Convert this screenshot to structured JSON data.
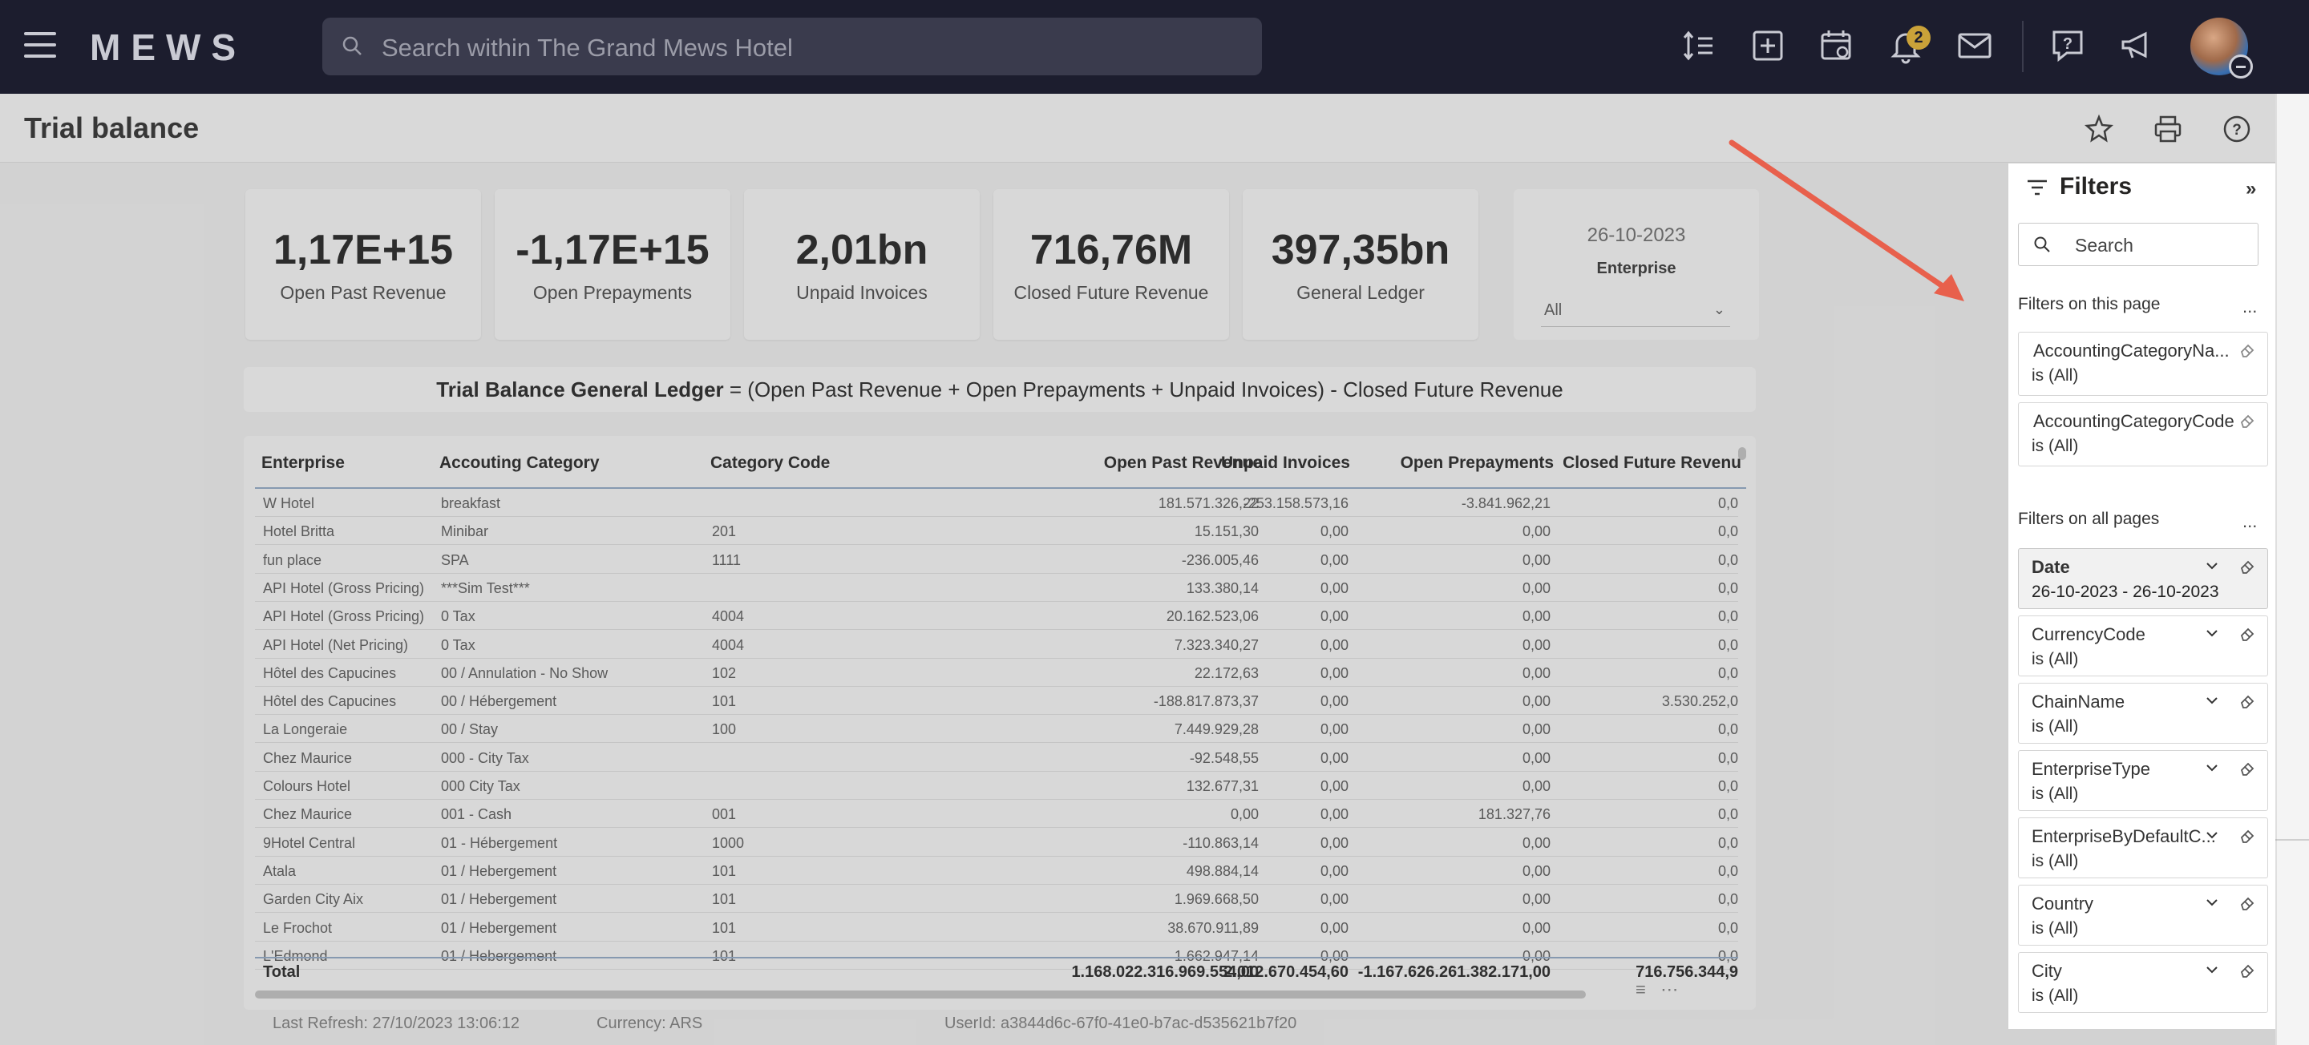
{
  "nav": {
    "logo": "MEWS",
    "search_placeholder": "Search within The Grand Mews Hotel",
    "notifications_count": "2",
    "icons": [
      "line-spacing-icon",
      "add-square-icon",
      "calendar-view-icon",
      "bell-icon",
      "mail-icon",
      "help-chat-icon",
      "megaphone-icon"
    ]
  },
  "page": {
    "title": "Trial balance"
  },
  "kpis": [
    {
      "value": "1,17E+15",
      "label": "Open Past Revenue"
    },
    {
      "value": "-1,17E+15",
      "label": "Open Prepayments"
    },
    {
      "value": "2,01bn",
      "label": "Unpaid Invoices"
    },
    {
      "value": "716,76M",
      "label": "Closed Future Revenue"
    },
    {
      "value": "397,35bn",
      "label": "General Ledger"
    }
  ],
  "date_card": {
    "date": "26-10-2023",
    "label": "Enterprise",
    "selected": "All"
  },
  "formula": {
    "bold": "Trial Balance General Ledger",
    "rest": " = (Open Past Revenue + Open Prepayments + Unpaid Invoices) - Closed Future Revenue"
  },
  "table": {
    "headers": [
      "Enterprise",
      "Accouting Category",
      "Category Code",
      "Open Past Revenue",
      "Unpaid Invoices",
      "Open Prepayments",
      "Closed Future Revenu"
    ],
    "rows": [
      [
        "W Hotel",
        "breakfast",
        "",
        "181.571.326,22",
        "-253.158.573,16",
        "-3.841.962,21",
        "0,0"
      ],
      [
        "Hotel Britta",
        "Minibar",
        "201",
        "15.151,30",
        "0,00",
        "0,00",
        "0,0"
      ],
      [
        "fun place",
        "SPA",
        "1111",
        "-236.005,46",
        "0,00",
        "0,00",
        "0,0"
      ],
      [
        "API Hotel (Gross Pricing)",
        "***Sim Test***",
        "",
        "133.380,14",
        "0,00",
        "0,00",
        "0,0"
      ],
      [
        "API Hotel (Gross Pricing)",
        "0 Tax",
        "4004",
        "20.162.523,06",
        "0,00",
        "0,00",
        "0,0"
      ],
      [
        "API Hotel (Net Pricing)",
        "0 Tax",
        "4004",
        "7.323.340,27",
        "0,00",
        "0,00",
        "0,0"
      ],
      [
        "Hôtel des Capucines",
        "00 / Annulation - No Show",
        "102",
        "22.172,63",
        "0,00",
        "0,00",
        "0,0"
      ],
      [
        "Hôtel des Capucines",
        "00 / Hébergement",
        "101",
        "-188.817.873,37",
        "0,00",
        "0,00",
        "3.530.252,0"
      ],
      [
        "La Longeraie",
        "00 / Stay",
        "100",
        "7.449.929,28",
        "0,00",
        "0,00",
        "0,0"
      ],
      [
        "Chez Maurice",
        "000 - City Tax",
        "",
        "-92.548,55",
        "0,00",
        "0,00",
        "0,0"
      ],
      [
        "Colours Hotel",
        "000 City Tax",
        "",
        "132.677,31",
        "0,00",
        "0,00",
        "0,0"
      ],
      [
        "Chez Maurice",
        "001 - Cash",
        "001",
        "0,00",
        "0,00",
        "181.327,76",
        "0,0"
      ],
      [
        "9Hotel Central",
        "01 - Hébergement",
        "1000",
        "-110.863,14",
        "0,00",
        "0,00",
        "0,0"
      ],
      [
        "Atala",
        "01 / Hebergement",
        "101",
        "498.884,14",
        "0,00",
        "0,00",
        "0,0"
      ],
      [
        "Garden City Aix",
        "01 / Hebergement",
        "101",
        "1.969.668,50",
        "0,00",
        "0,00",
        "0,0"
      ],
      [
        "Le Frochot",
        "01 / Hebergement",
        "101",
        "38.670.911,89",
        "0,00",
        "0,00",
        "0,0"
      ],
      [
        "L'Edmond",
        "01 / Hebergement",
        "101",
        "1.662.947,14",
        "0,00",
        "0,00",
        "0,0"
      ]
    ],
    "total": {
      "label": "Total",
      "open_past_revenue": "1.168.022.316.969.554,00",
      "unpaid_invoices": "2.012.670.454,60",
      "open_prepayments": "-1.167.626.261.382.171,00",
      "closed_future": "716.756.344,9"
    }
  },
  "footer": {
    "last_refresh": "Last Refresh: 27/10/2023 13:06:12",
    "currency": "Currency: ARS",
    "userid": "UserId: a3844d6c-67f0-41e0-b7ac-d535621b7f20"
  },
  "filters": {
    "title": "Filters",
    "search_placeholder": "Search",
    "this_page_label": "Filters on this page",
    "all_pages_label": "Filters on all pages",
    "more": "...",
    "this_page": [
      {
        "name": "AccountingCategoryNa...",
        "value": "is (All)"
      },
      {
        "name": "AccountingCategoryCode",
        "value": "is (All)"
      }
    ],
    "all_pages": [
      {
        "name": "Date",
        "value": "26-10-2023 - 26-10-2023"
      },
      {
        "name": "CurrencyCode",
        "value": "is (All)"
      },
      {
        "name": "ChainName",
        "value": "is (All)"
      },
      {
        "name": "EnterpriseType",
        "value": "is (All)"
      },
      {
        "name": "EnterpriseByDefaultC...",
        "value": "is (All)"
      },
      {
        "name": "Country",
        "value": "is (All)"
      },
      {
        "name": "City",
        "value": "is (All)"
      }
    ]
  },
  "colors": {
    "nav_bg": "#1c1d2e",
    "badge": "#caa239",
    "arrow": "#e8604c"
  }
}
